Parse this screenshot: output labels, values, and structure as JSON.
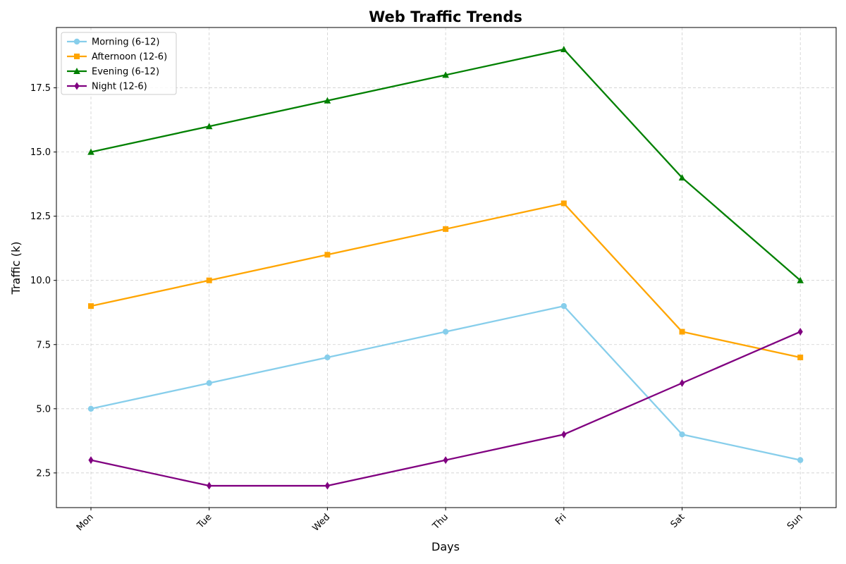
{
  "chart_data": {
    "type": "line",
    "title": "Web Traffic Trends",
    "xlabel": "Days",
    "ylabel": "Traffic (k)",
    "categories": [
      "Mon",
      "Tue",
      "Wed",
      "Thu",
      "Fri",
      "Sat",
      "Sun"
    ],
    "ylim": [
      1.15,
      19.85
    ],
    "yticks": [
      2.5,
      5.0,
      7.5,
      10.0,
      12.5,
      15.0,
      17.5
    ],
    "ytick_labels": [
      "2.5",
      "5.0",
      "7.5",
      "10.0",
      "12.5",
      "15.0",
      "17.5"
    ],
    "grid": true,
    "legend_position": "top-left",
    "series": [
      {
        "name": "Morning (6-12)",
        "color": "#87ceeb",
        "marker": "circle",
        "values": [
          5,
          6,
          7,
          8,
          9,
          4,
          3
        ]
      },
      {
        "name": "Afternoon (12-6)",
        "color": "#ffa500",
        "marker": "square",
        "values": [
          9,
          10,
          11,
          12,
          13,
          8,
          7
        ]
      },
      {
        "name": "Evening (6-12)",
        "color": "#008000",
        "marker": "triangle",
        "values": [
          15,
          16,
          17,
          18,
          19,
          14,
          10
        ]
      },
      {
        "name": "Night (12-6)",
        "color": "#800080",
        "marker": "diamond",
        "values": [
          3,
          2,
          2,
          3,
          4,
          6,
          8
        ]
      }
    ]
  }
}
